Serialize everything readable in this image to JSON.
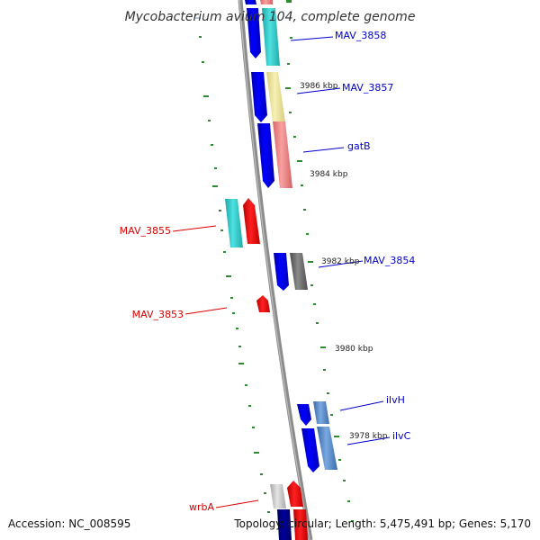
{
  "title": "Mycobacterium avium 104, complete genome",
  "accession": "Accession: NC_008595",
  "topology": "Topology: circular; Length: 5,475,491 bp; Genes: 5,170",
  "colors": {
    "backbone": "#8c8c8c",
    "tick": "#2e8b2e",
    "forward_label": "#0000cc",
    "reverse_label": "#dd0000",
    "forward_arrow": "#0000ee",
    "reverse_arrow": "#ee0000",
    "cyan": "#33cccc",
    "khaki": "#eee8a0",
    "salmon": "#f08080",
    "gray": "#666666",
    "steel": "#4f86c6",
    "navy": "#00007a",
    "light_gray": "#c8c8c8"
  },
  "positions": [
    {
      "label": "3986 kbp"
    },
    {
      "label": "3984 kbp"
    },
    {
      "label": "3982 kbp"
    },
    {
      "label": "3980 kbp"
    },
    {
      "label": "3978 kbp"
    }
  ],
  "genes": [
    {
      "name": "MAV_3858",
      "strand": "forward"
    },
    {
      "name": "MAV_3857",
      "strand": "forward"
    },
    {
      "name": "gatB",
      "strand": "forward"
    },
    {
      "name": "MAV_3855",
      "strand": "reverse"
    },
    {
      "name": "MAV_3854",
      "strand": "forward"
    },
    {
      "name": "MAV_3853",
      "strand": "reverse"
    },
    {
      "name": "ilvH",
      "strand": "forward"
    },
    {
      "name": "ilvC",
      "strand": "forward"
    },
    {
      "name": "wrbA",
      "strand": "reverse"
    }
  ]
}
